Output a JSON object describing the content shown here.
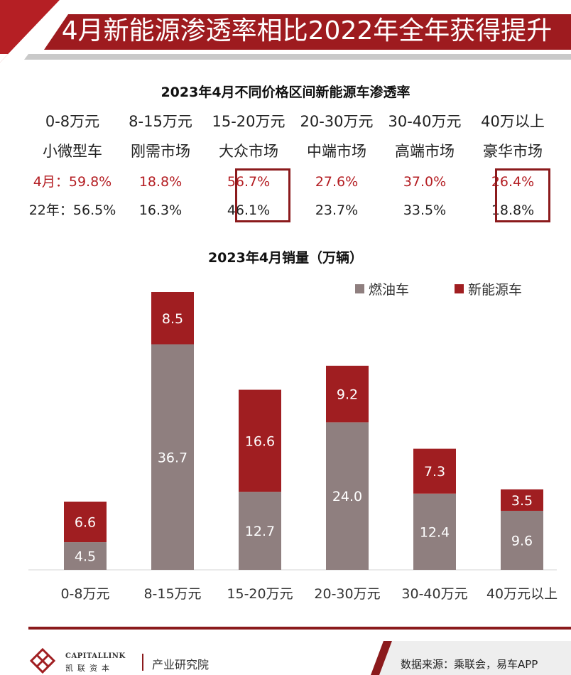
{
  "banner": {
    "title": "4月新能源渗透率相比2022年全年获得提升"
  },
  "table": {
    "title": "2023年4月不同价格区间新能源车渗透率",
    "price_ranges": [
      "0-8万元",
      "8-15万元",
      "15-20万元",
      "20-30万元",
      "30-40万元",
      "40万以上"
    ],
    "segments": [
      "小微型车",
      "刚需市场",
      "大众市场",
      "中端市场",
      "高端市场",
      "豪华市场"
    ],
    "april_row": [
      "4月：59.8%",
      "18.8%",
      "56.7%",
      "27.6%",
      "37.0%",
      "26.4%"
    ],
    "y2022_row": [
      "22年：56.5%",
      "16.3%",
      "46.1%",
      "23.7%",
      "33.5%",
      "18.8%"
    ],
    "highlight_columns": [
      2,
      5
    ],
    "highlight_color": "#8b1a1c"
  },
  "chart_data": {
    "type": "bar",
    "stacked": true,
    "title": "2023年4月销量（万辆）",
    "categories": [
      "0-8万元",
      "8-15万元",
      "15-20万元",
      "20-30万元",
      "30-40万元",
      "40万元以上"
    ],
    "series": [
      {
        "name": "燃油车",
        "color": "#8f7f7f",
        "values": [
          4.5,
          36.7,
          12.7,
          24.0,
          12.4,
          9.6
        ]
      },
      {
        "name": "新能源车",
        "color": "#a01e21",
        "values": [
          6.6,
          8.5,
          16.6,
          9.2,
          7.3,
          3.5
        ]
      }
    ],
    "ylim": [
      0,
      45.2
    ],
    "legend_position": "top-right",
    "grid": false
  },
  "footer": {
    "logo_en": "CAPITALLINK",
    "logo_cn": "凯联资本",
    "department": "产业研究院",
    "source": "数据来源：乘联会，易车APP"
  },
  "colors": {
    "brand_red": "#8b1a1c",
    "banner_red": "#9e1b1f",
    "gray_bar": "#8f7f7f",
    "nev_red": "#a01e21"
  }
}
